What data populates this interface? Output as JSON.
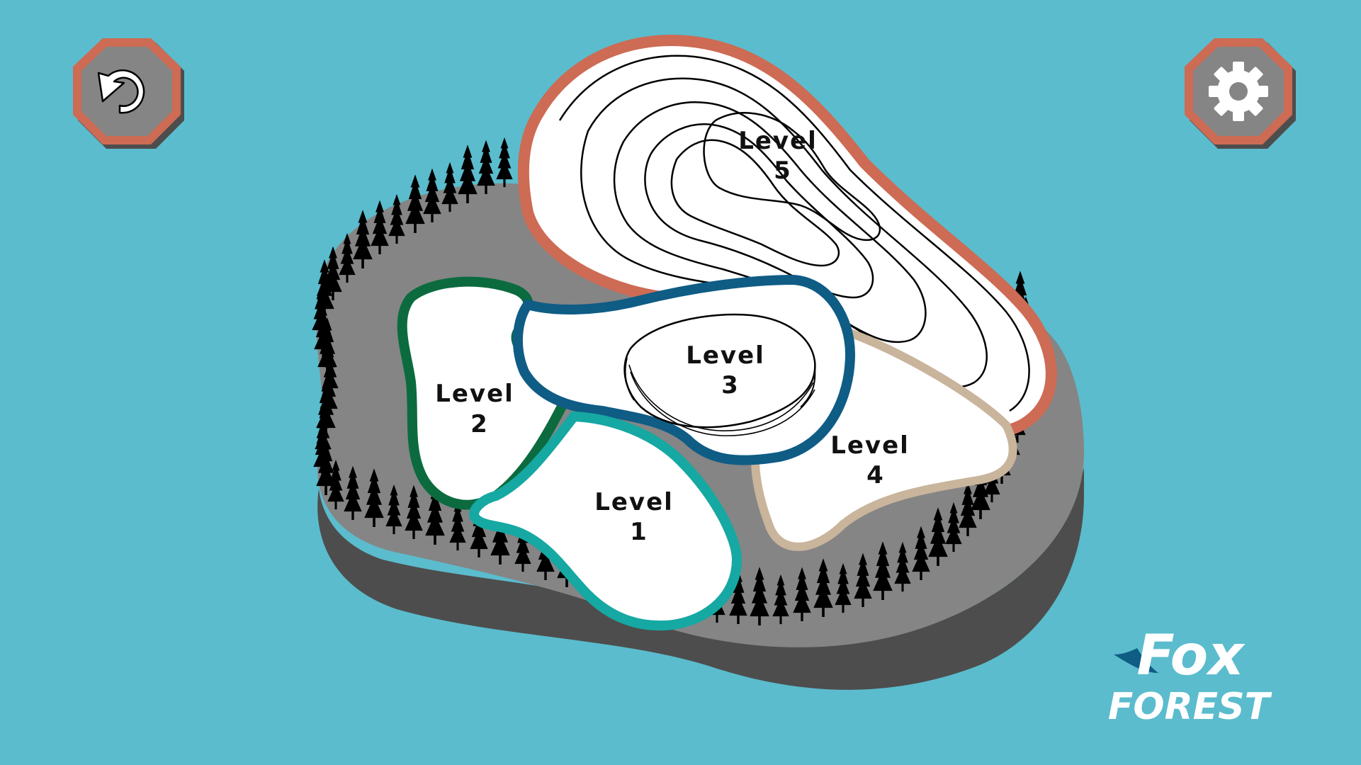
{
  "screen": "level-select-map",
  "colors": {
    "sky": "#5bbccd",
    "ground_top": "#858585",
    "ground_side": "#4d4d4d",
    "button_fill": "#858585",
    "button_ring": "#cd6b54",
    "button_shadow": "#4d4d4d",
    "level1_border": "#16a8a2",
    "level2_border": "#0b6b3f",
    "level3_border": "#0f5c85",
    "level4_border": "#c9b49c",
    "level5_border": "#cd6b54",
    "trees": "#000000",
    "logo": "#ffffff"
  },
  "buttons": {
    "back_icon": "undo-arrow-icon",
    "settings_icon": "gear-icon"
  },
  "levels": [
    {
      "id": 1,
      "line1": "Level",
      "line2": "1"
    },
    {
      "id": 2,
      "line1": "Level",
      "line2": "2"
    },
    {
      "id": 3,
      "line1": "Level",
      "line2": "3"
    },
    {
      "id": 4,
      "line1": "Level",
      "line2": "4"
    },
    {
      "id": 5,
      "line1": "Level",
      "line2": "5"
    }
  ],
  "logo": {
    "line1": "Fox",
    "line2": "FOREST"
  }
}
